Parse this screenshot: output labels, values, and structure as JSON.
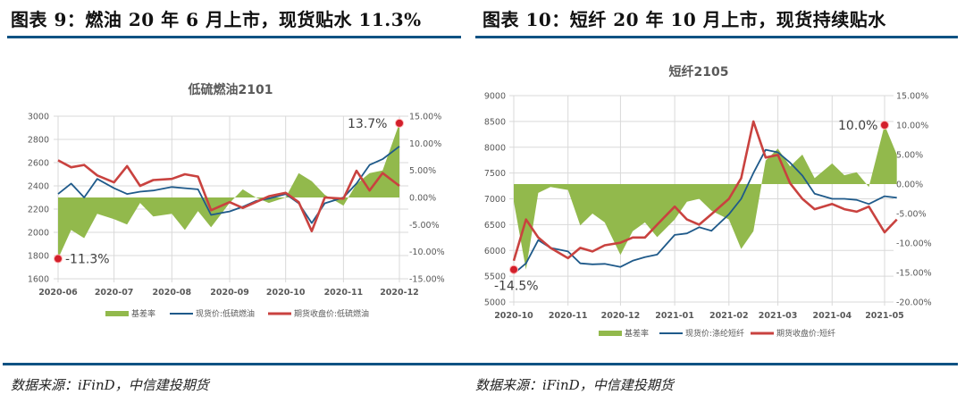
{
  "figures": [
    {
      "title": "图表 9：燃油 20 年 6 月上市，现货贴水 11.3%",
      "source": "数据来源：iFinD，中信建投期货"
    },
    {
      "title": "图表 10：短纤 20 年 10 月上市，现货持续贴水",
      "source": "数据来源：iFinD，中信建投期货"
    }
  ],
  "colors": {
    "basis_fill": "#92b94c",
    "spot_line": "#1f5a8a",
    "futures_line": "#c9423f",
    "marker": "#d21f2b",
    "rule": "#0f5283"
  },
  "chart_data": [
    {
      "type": "line",
      "title": "低硫燃油2101",
      "xlabel": "",
      "ylabel": "",
      "x_ticks": [
        "2020-06",
        "2020-07",
        "2020-08",
        "2020-09",
        "2020-10",
        "2020-11",
        "2020-12"
      ],
      "y_left_ticks": [
        "3000",
        "2800",
        "2600",
        "2400",
        "2200",
        "2000",
        "1800",
        "1600"
      ],
      "y_right_ticks": [
        "15.00%",
        "10.00%",
        "5.00%",
        "0.00%",
        "-5.00%",
        "-10.00%",
        "-15.00%"
      ],
      "ylim_left": [
        1600,
        3000
      ],
      "ylim_right": [
        -15,
        15
      ],
      "grid": true,
      "legend_position": "bottom",
      "legend": [
        "基差率",
        "现货价:低硫燃油",
        "期货收盘价:低硫燃油"
      ],
      "annotations": [
        {
          "text": "13.7%",
          "x": "2020-12",
          "value": 13.7
        },
        {
          "text": "-11.3%",
          "x": "2020-06",
          "value": -11.3
        }
      ],
      "x": [
        "2020-06-01",
        "2020-06-08",
        "2020-06-15",
        "2020-06-22",
        "2020-07-01",
        "2020-07-08",
        "2020-07-15",
        "2020-07-22",
        "2020-08-01",
        "2020-08-08",
        "2020-08-15",
        "2020-08-22",
        "2020-09-01",
        "2020-09-08",
        "2020-09-15",
        "2020-09-22",
        "2020-10-01",
        "2020-10-08",
        "2020-10-15",
        "2020-10-22",
        "2020-11-01",
        "2020-11-08",
        "2020-11-15",
        "2020-11-22",
        "2020-12-01"
      ],
      "series": [
        {
          "name": "基差率",
          "axis": "right",
          "type": "area",
          "values": [
            -11.3,
            -6.0,
            -7.5,
            -3.0,
            -4.0,
            -5.0,
            -1.0,
            -3.5,
            -3.0,
            -6.0,
            -2.5,
            -5.5,
            -1.0,
            1.5,
            0.0,
            -1.0,
            0.0,
            4.5,
            3.0,
            0.5,
            -1.5,
            2.5,
            4.5,
            5.0,
            13.7
          ]
        },
        {
          "name": "现货价:低硫燃油",
          "axis": "left",
          "type": "line",
          "values": [
            2330,
            2420,
            2300,
            2460,
            2380,
            2330,
            2350,
            2360,
            2390,
            2380,
            2370,
            2150,
            2180,
            2220,
            2270,
            2290,
            2330,
            2250,
            2080,
            2250,
            2300,
            2420,
            2580,
            2630,
            2740
          ]
        },
        {
          "name": "期货收盘价:低硫燃油",
          "axis": "left",
          "type": "line",
          "values": [
            2620,
            2560,
            2580,
            2490,
            2430,
            2570,
            2400,
            2450,
            2460,
            2500,
            2480,
            2190,
            2260,
            2210,
            2260,
            2310,
            2340,
            2260,
            2010,
            2300,
            2290,
            2530,
            2360,
            2510,
            2400
          ]
        }
      ]
    },
    {
      "type": "line",
      "title": "短纤2105",
      "xlabel": "",
      "ylabel": "",
      "x_ticks": [
        "2020-10",
        "2020-11",
        "2020-12",
        "2021-01",
        "2021-02",
        "2021-03",
        "2021-04",
        "2021-05"
      ],
      "y_left_ticks": [
        "9000",
        "8500",
        "8000",
        "7500",
        "7000",
        "6500",
        "6000",
        "5500",
        "5000"
      ],
      "y_right_ticks": [
        "15.00%",
        "10.00%",
        "5.00%",
        "0.00%",
        "-5.00%",
        "-10.00%",
        "-15.00%",
        "-20.00%"
      ],
      "ylim_left": [
        5000,
        9000
      ],
      "ylim_right": [
        -20,
        15
      ],
      "grid": true,
      "legend_position": "bottom",
      "legend": [
        "基差率",
        "现货价:涤纶短纤",
        "期货收盘价:短纤"
      ],
      "annotations": [
        {
          "text": "10.0%",
          "x": "2021-05",
          "value": 10.0
        },
        {
          "text": "-14.5%",
          "x": "2020-10",
          "value": -14.5
        }
      ],
      "x": [
        "2020-10-01",
        "2020-10-08",
        "2020-10-15",
        "2020-10-22",
        "2020-11-01",
        "2020-11-08",
        "2020-11-15",
        "2020-11-22",
        "2020-12-01",
        "2020-12-08",
        "2020-12-15",
        "2020-12-22",
        "2021-01-01",
        "2021-01-08",
        "2021-01-15",
        "2021-01-22",
        "2021-02-01",
        "2021-02-08",
        "2021-02-15",
        "2021-02-22",
        "2021-03-01",
        "2021-03-08",
        "2021-03-15",
        "2021-03-22",
        "2021-04-01",
        "2021-04-08",
        "2021-04-15",
        "2021-04-22",
        "2021-05-01",
        "2021-05-08"
      ],
      "series": [
        {
          "name": "基差率",
          "axis": "right",
          "type": "area",
          "values": [
            -3.0,
            -14.5,
            -1.5,
            -0.5,
            -1.0,
            -7.0,
            -5.0,
            -6.5,
            -12.0,
            -8.0,
            -6.5,
            -9.0,
            -6.0,
            -3.0,
            -2.5,
            -4.5,
            -6.0,
            -11.0,
            -8.0,
            4.0,
            6.0,
            3.0,
            5.0,
            1.0,
            3.5,
            1.5,
            2.0,
            -0.5,
            10.0,
            5.0
          ]
        },
        {
          "name": "现货价:涤纶短纤",
          "axis": "left",
          "type": "line",
          "values": [
            5550,
            5750,
            6200,
            6050,
            5980,
            5750,
            5730,
            5740,
            5680,
            5800,
            5870,
            5920,
            6300,
            6330,
            6450,
            6380,
            6700,
            7000,
            7500,
            7950,
            7900,
            7700,
            7450,
            7100,
            7000,
            7000,
            6980,
            6900,
            7050,
            7020
          ]
        },
        {
          "name": "期货收盘价:短纤",
          "axis": "left",
          "type": "line",
          "values": [
            5800,
            6600,
            6250,
            6050,
            5850,
            6050,
            5980,
            6100,
            6150,
            6250,
            6250,
            6500,
            6850,
            6600,
            6500,
            6700,
            7000,
            7400,
            8500,
            7800,
            7850,
            7300,
            7000,
            6800,
            6900,
            6800,
            6750,
            6850,
            6350,
            6600
          ]
        }
      ]
    }
  ]
}
